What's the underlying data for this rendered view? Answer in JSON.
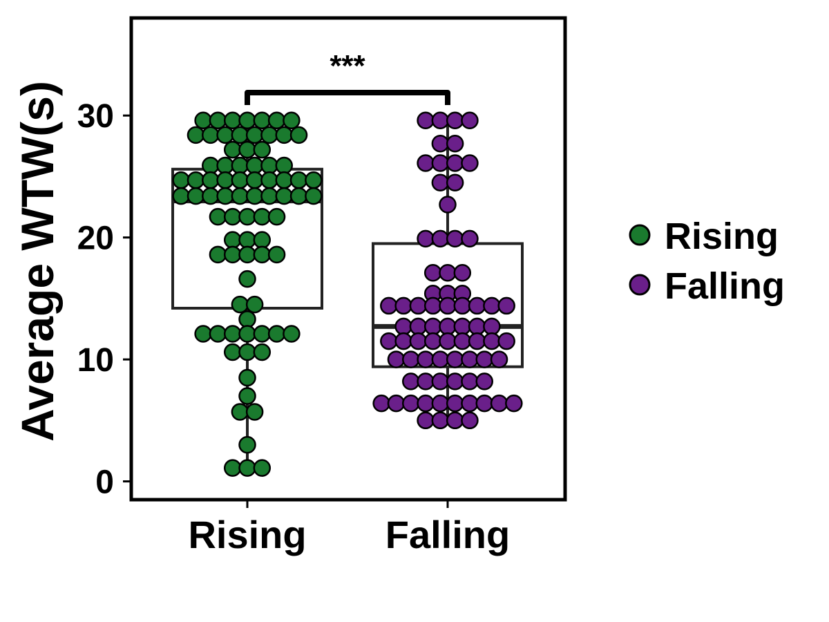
{
  "chart_data": {
    "type": "box-swarm",
    "ylabel": "Average WTW(s)",
    "xlabel": "",
    "categories": [
      "Rising",
      "Falling"
    ],
    "ylim": [
      -1.5,
      38
    ],
    "yticks": [
      "0",
      "10",
      "20",
      "30"
    ],
    "significance": "***",
    "legend_position": "right",
    "series": [
      {
        "name": "Rising",
        "color": "#1a7a2e",
        "box": {
          "q1": 14.2,
          "median": 23.0,
          "q3": 25.6,
          "whisker_low": 1.1,
          "whisker_high": 29.6
        },
        "points": [
          [
            29.6,
            7
          ],
          [
            28.4,
            8
          ],
          [
            27.2,
            3
          ],
          [
            25.9,
            6
          ],
          [
            24.7,
            10
          ],
          [
            23.4,
            10
          ],
          [
            21.7,
            5
          ],
          [
            19.8,
            3
          ],
          [
            18.6,
            5
          ],
          [
            16.6,
            1
          ],
          [
            14.5,
            2
          ],
          [
            13.3,
            1
          ],
          [
            12.1,
            7
          ],
          [
            10.6,
            3
          ],
          [
            8.5,
            1
          ],
          [
            7.0,
            1
          ],
          [
            5.7,
            2
          ],
          [
            3.0,
            1
          ],
          [
            1.1,
            3
          ]
        ]
      },
      {
        "name": "Falling",
        "color": "#6a1f8a",
        "box": {
          "q1": 9.4,
          "median": 12.7,
          "q3": 19.5,
          "whisker_low": 5.0,
          "whisker_high": 29.6
        },
        "points": [
          [
            29.6,
            4
          ],
          [
            27.7,
            2
          ],
          [
            26.1,
            4
          ],
          [
            24.5,
            2
          ],
          [
            22.7,
            1
          ],
          [
            19.9,
            4
          ],
          [
            17.1,
            3
          ],
          [
            15.4,
            3
          ],
          [
            14.4,
            9
          ],
          [
            12.7,
            7
          ],
          [
            11.5,
            9
          ],
          [
            10.0,
            8
          ],
          [
            8.2,
            6
          ],
          [
            6.4,
            10
          ],
          [
            5.0,
            4
          ]
        ]
      }
    ]
  }
}
